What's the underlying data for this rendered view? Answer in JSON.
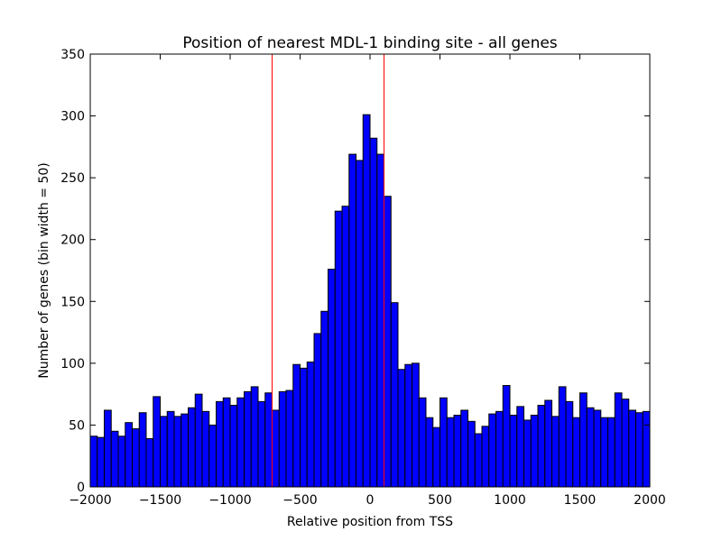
{
  "chart_data": {
    "type": "bar",
    "title": "Position of nearest MDL-1 binding site - all genes",
    "xlabel": "Relative position from TSS",
    "ylabel": "Number of genes (bin width = 50)",
    "xlim": [
      -2000,
      2000
    ],
    "ylim": [
      0,
      350
    ],
    "bin_width": 50,
    "x_ticks": [
      -2000,
      -1500,
      -1000,
      -500,
      0,
      500,
      1000,
      1500,
      2000
    ],
    "x_tick_labels": [
      "−2000",
      "−1500",
      "−1000",
      "−500",
      "0",
      "500",
      "1000",
      "1500",
      "2000"
    ],
    "y_ticks": [
      0,
      50,
      100,
      150,
      200,
      250,
      300,
      350
    ],
    "y_tick_labels": [
      "0",
      "50",
      "100",
      "150",
      "200",
      "250",
      "300",
      "350"
    ],
    "bin_starts": [
      -2000,
      -1950,
      -1900,
      -1850,
      -1800,
      -1750,
      -1700,
      -1650,
      -1600,
      -1550,
      -1500,
      -1450,
      -1400,
      -1350,
      -1300,
      -1250,
      -1200,
      -1150,
      -1100,
      -1050,
      -1000,
      -950,
      -900,
      -850,
      -800,
      -750,
      -700,
      -650,
      -600,
      -550,
      -500,
      -450,
      -400,
      -350,
      -300,
      -250,
      -200,
      -150,
      -100,
      -50,
      0,
      50,
      100,
      150,
      200,
      250,
      300,
      350,
      400,
      450,
      500,
      550,
      600,
      650,
      700,
      750,
      800,
      850,
      900,
      950,
      1000,
      1050,
      1100,
      1150,
      1200,
      1250,
      1300,
      1350,
      1400,
      1450,
      1500,
      1550,
      1600,
      1650,
      1700,
      1750,
      1800,
      1850,
      1900,
      1950
    ],
    "values": [
      41,
      40,
      62,
      45,
      41,
      52,
      47,
      60,
      39,
      73,
      57,
      61,
      57,
      59,
      64,
      75,
      61,
      50,
      69,
      72,
      66,
      72,
      77,
      81,
      69,
      76,
      62,
      77,
      78,
      99,
      96,
      101,
      124,
      142,
      176,
      223,
      227,
      269,
      264,
      301,
      282,
      269,
      235,
      149,
      95,
      99,
      100,
      72,
      56,
      48,
      72,
      56,
      58,
      62,
      53,
      43,
      49,
      59,
      61,
      82,
      58,
      65,
      54,
      58,
      66,
      70,
      57,
      81,
      69,
      56,
      76,
      64,
      62,
      56,
      56,
      76,
      71,
      62,
      60,
      61
    ],
    "vertical_lines": [
      -700,
      100
    ],
    "colors": {
      "bar_fill": "#0000ff",
      "bar_edge": "#000000",
      "vline": "#ff0000",
      "axes": "#000000",
      "background": "#ffffff"
    },
    "grid": false,
    "legend": "none"
  }
}
